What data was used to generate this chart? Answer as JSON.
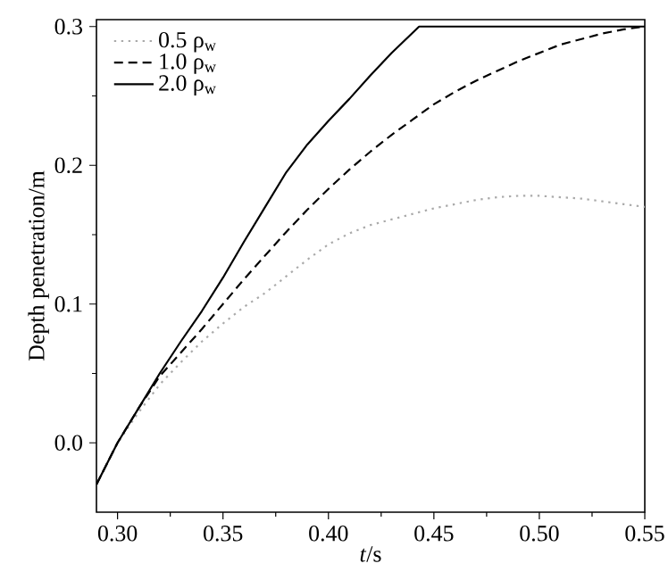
{
  "chart_data": {
    "type": "line",
    "xlabel": "*t*/s",
    "ylabel": "Depth penetration/m",
    "xlim": [
      0.29,
      0.55
    ],
    "ylim": [
      -0.05,
      0.305
    ],
    "xticks": [
      {
        "value": 0.3,
        "label": "0.30"
      },
      {
        "value": 0.35,
        "label": "0.35"
      },
      {
        "value": 0.4,
        "label": "0.40"
      },
      {
        "value": 0.45,
        "label": "0.45"
      },
      {
        "value": 0.5,
        "label": "0.50"
      },
      {
        "value": 0.55,
        "label": "0.55"
      }
    ],
    "yticks": [
      {
        "value": 0,
        "label": "0.0"
      },
      0.1,
      0.2,
      0.3
    ],
    "legend": "top left",
    "grid": false,
    "series": [
      {
        "name": "0.5 ρ$_{w}$",
        "color": "#aaaaaa",
        "line_style": "dotted",
        "x": [
          0.29,
          0.3,
          0.31,
          0.32,
          0.33,
          0.34,
          0.35,
          0.36,
          0.37,
          0.38,
          0.39,
          0.4,
          0.41,
          0.42,
          0.43,
          0.44,
          0.45,
          0.46,
          0.47,
          0.48,
          0.49,
          0.5,
          0.51,
          0.52,
          0.53,
          0.54,
          0.55
        ],
        "values": [
          -0.03,
          0.0,
          0.022,
          0.042,
          0.058,
          0.073,
          0.086,
          0.098,
          0.108,
          0.12,
          0.132,
          0.143,
          0.151,
          0.157,
          0.161,
          0.165,
          0.169,
          0.172,
          0.175,
          0.177,
          0.178,
          0.178,
          0.177,
          0.176,
          0.174,
          0.172,
          0.17
        ]
      },
      {
        "name": "1.0 ρ$_{w}$",
        "color": "#000000",
        "line_style": "dashed",
        "x": [
          0.29,
          0.3,
          0.31,
          0.32,
          0.33,
          0.34,
          0.35,
          0.36,
          0.37,
          0.38,
          0.39,
          0.4,
          0.41,
          0.42,
          0.43,
          0.44,
          0.45,
          0.46,
          0.47,
          0.48,
          0.49,
          0.5,
          0.51,
          0.52,
          0.53,
          0.54,
          0.55
        ],
        "values": [
          -0.03,
          0.0,
          0.025,
          0.048,
          0.065,
          0.082,
          0.1,
          0.118,
          0.135,
          0.152,
          0.168,
          0.183,
          0.197,
          0.21,
          0.222,
          0.233,
          0.244,
          0.253,
          0.261,
          0.268,
          0.275,
          0.281,
          0.287,
          0.291,
          0.295,
          0.298,
          0.3
        ]
      },
      {
        "name": "2.0 ρ$_{w}$",
        "color": "#000000",
        "line_style": "solid",
        "x": [
          0.29,
          0.3,
          0.31,
          0.32,
          0.33,
          0.34,
          0.35,
          0.36,
          0.37,
          0.38,
          0.39,
          0.4,
          0.41,
          0.42,
          0.43,
          0.443,
          0.55
        ],
        "values": [
          -0.03,
          0.0,
          0.025,
          0.05,
          0.073,
          0.095,
          0.119,
          0.145,
          0.17,
          0.195,
          0.215,
          0.232,
          0.248,
          0.265,
          0.281,
          0.3,
          0.3
        ]
      }
    ]
  }
}
